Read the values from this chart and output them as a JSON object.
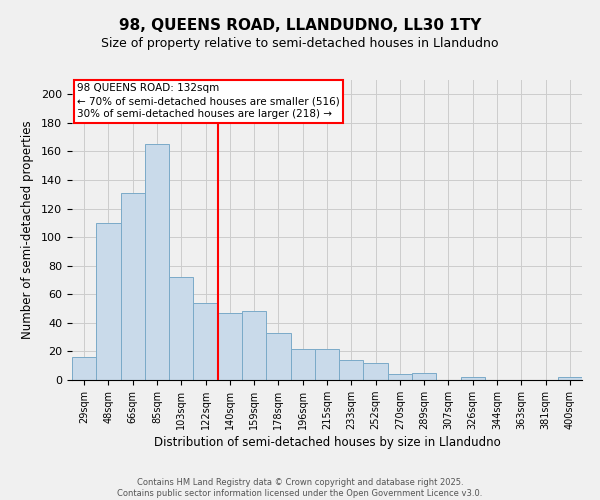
{
  "title1": "98, QUEENS ROAD, LLANDUDNO, LL30 1TY",
  "title2": "Size of property relative to semi-detached houses in Llandudno",
  "xlabel": "Distribution of semi-detached houses by size in Llandudno",
  "ylabel": "Number of semi-detached properties",
  "categories": [
    "29sqm",
    "48sqm",
    "66sqm",
    "85sqm",
    "103sqm",
    "122sqm",
    "140sqm",
    "159sqm",
    "178sqm",
    "196sqm",
    "215sqm",
    "233sqm",
    "252sqm",
    "270sqm",
    "289sqm",
    "307sqm",
    "326sqm",
    "344sqm",
    "363sqm",
    "381sqm",
    "400sqm"
  ],
  "values": [
    16,
    110,
    131,
    165,
    72,
    54,
    47,
    48,
    33,
    22,
    22,
    14,
    12,
    4,
    5,
    0,
    2,
    0,
    0,
    0,
    2
  ],
  "bar_color": "#c9daea",
  "bar_edge_color": "#7aaac8",
  "vline_x_index": 6,
  "vline_color": "red",
  "annotation_title": "98 QUEENS ROAD: 132sqm",
  "annotation_line2": "← 70% of semi-detached houses are smaller (516)",
  "annotation_line3": "30% of semi-detached houses are larger (218) →",
  "annotation_box_color": "white",
  "annotation_box_edge": "red",
  "ylim": [
    0,
    210
  ],
  "yticks": [
    0,
    20,
    40,
    60,
    80,
    100,
    120,
    140,
    160,
    180,
    200
  ],
  "footer": "Contains HM Land Registry data © Crown copyright and database right 2025.\nContains public sector information licensed under the Open Government Licence v3.0.",
  "background_color": "#f0f0f0",
  "grid_color": "#cccccc",
  "title1_fontsize": 11,
  "title2_fontsize": 9,
  "xlabel_fontsize": 8.5,
  "ylabel_fontsize": 8.5,
  "tick_fontsize": 7,
  "footer_fontsize": 6,
  "annotation_fontsize": 7.5
}
